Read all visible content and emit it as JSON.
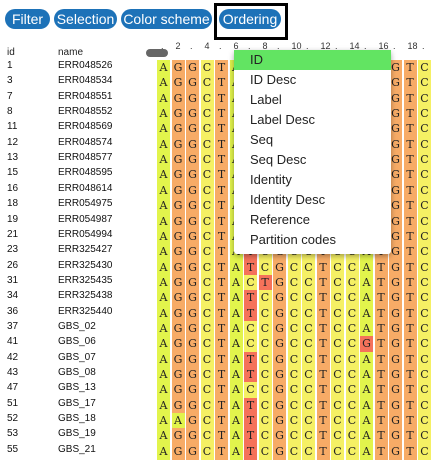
{
  "toolbar": {
    "buttons": [
      {
        "label": "Filter"
      },
      {
        "label": "Selection"
      },
      {
        "label": "Color scheme"
      },
      {
        "label": "Ordering"
      }
    ]
  },
  "columns": {
    "id": "id",
    "name": "name"
  },
  "ruler": [
    ".",
    "2",
    ".",
    "4",
    ".",
    "6",
    ".",
    "8",
    ".",
    "10",
    ".",
    "12",
    ".",
    "14",
    ".",
    "16",
    ".",
    "18",
    "."
  ],
  "rows": [
    {
      "id": "1",
      "name": "ERR048526",
      "seq": "AGGCTATCGCCTCCATGTC"
    },
    {
      "id": "3",
      "name": "ERR048534",
      "seq": "AGGCTATCGCCTCCATGTC"
    },
    {
      "id": "7",
      "name": "ERR048551",
      "seq": "AGGCTATCGCCTCCATGTC"
    },
    {
      "id": "8",
      "name": "ERR048552",
      "seq": "AGGCTATCGCCTCCATGTC"
    },
    {
      "id": "11",
      "name": "ERR048569",
      "seq": "AGGCTATCGCCTCCATGTC"
    },
    {
      "id": "12",
      "name": "ERR048574",
      "seq": "AGGCTATCGCCTCCATGTC"
    },
    {
      "id": "13",
      "name": "ERR048577",
      "seq": "AGGCTATCGCCTCCATGTC"
    },
    {
      "id": "15",
      "name": "ERR048595",
      "seq": "AGGCTATCGCCTCCATGTC"
    },
    {
      "id": "16",
      "name": "ERR048614",
      "seq": "AGGCTATCGCCTCCATGTC"
    },
    {
      "id": "18",
      "name": "ERR054975",
      "seq": "AGGCTATCGCCTCCATGTC"
    },
    {
      "id": "19",
      "name": "ERR054987",
      "seq": "AGGCTATCGCCTCCATGTC"
    },
    {
      "id": "21",
      "name": "ERR054994",
      "seq": "AGGCTATCGCCTCCATGTC"
    },
    {
      "id": "23",
      "name": "ERR325427",
      "seq": "AGGCTATCGCCTCCATGTC"
    },
    {
      "id": "26",
      "name": "ERR325430",
      "seq": "AGGCTATCGCCTCCATGTC"
    },
    {
      "id": "31",
      "name": "ERR325435",
      "seq": "AGGCTACTGCCTCCATGTC"
    },
    {
      "id": "34",
      "name": "ERR325438",
      "seq": "AGGCTATCGCCTCCATGTC"
    },
    {
      "id": "36",
      "name": "ERR325440",
      "seq": "AGGCTATCGCCTCCATGTC"
    },
    {
      "id": "37",
      "name": "GBS_02",
      "seq": "AGGCTACCGCCTCCATGTC"
    },
    {
      "id": "41",
      "name": "GBS_06",
      "seq": "AGGCTACCGCCTCCGTGTC"
    },
    {
      "id": "42",
      "name": "GBS_07",
      "seq": "AGGCTATCGCCTCCATGTC"
    },
    {
      "id": "43",
      "name": "GBS_08",
      "seq": "AGGCTATCGCCTCCATGTC"
    },
    {
      "id": "47",
      "name": "GBS_13",
      "seq": "AGGCTACCGCCTCCATGTC"
    },
    {
      "id": "51",
      "name": "GBS_17",
      "seq": "AGGCTATCGCCTCCATGTC"
    },
    {
      "id": "52",
      "name": "GBS_18",
      "seq": "AAGCTATCGCCTCCATGTC"
    },
    {
      "id": "53",
      "name": "GBS_19",
      "seq": "AGGCTATCGCCTCCATGTC"
    },
    {
      "id": "55",
      "name": "GBS_21",
      "seq": "AGGCTATCGCCTCCATGTC"
    }
  ],
  "colors": {
    "A": "#e2f44c",
    "G": "#f7ab66",
    "C": "#f5f064",
    "T": "#f7ab66",
    "T_var": "#f5725a",
    "button": "#1d72b8",
    "menu_selected": "#62e462"
  },
  "ordering_menu": {
    "selected": "ID",
    "items": [
      "ID",
      "ID Desc",
      "Label",
      "Label Desc",
      "Seq",
      "Seq Desc",
      "Identity",
      "Identity Desc",
      "Reference",
      "Partition codes"
    ]
  }
}
